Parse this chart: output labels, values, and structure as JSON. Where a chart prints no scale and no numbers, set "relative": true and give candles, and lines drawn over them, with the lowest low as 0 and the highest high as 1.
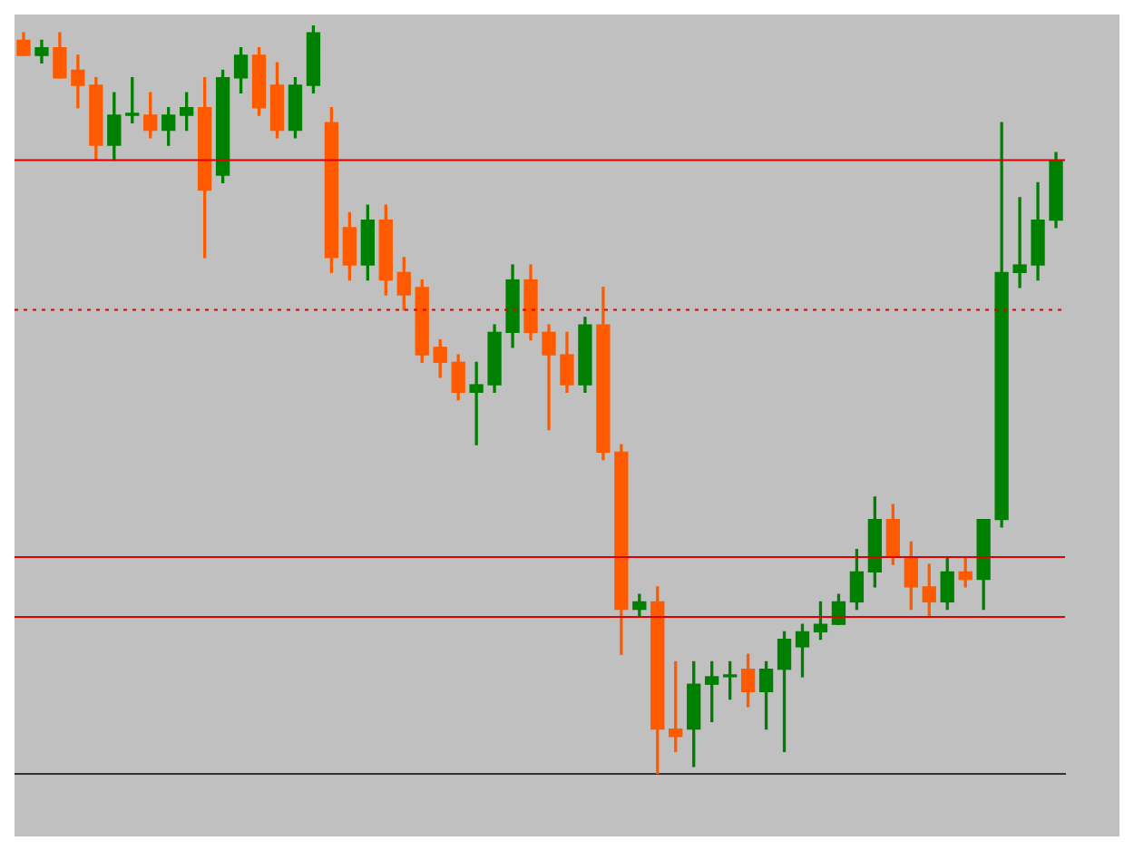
{
  "chart_data": {
    "type": "candlestick",
    "relative": true,
    "grid": false,
    "legend": false,
    "categories": [
      null,
      null,
      null,
      null,
      null,
      null,
      null,
      null,
      null,
      null,
      null,
      null,
      null,
      null,
      null,
      null,
      null,
      null,
      null,
      null,
      null,
      null,
      null,
      null,
      null,
      null,
      null,
      null,
      null,
      null,
      null,
      null,
      null,
      null,
      null,
      null,
      null,
      null,
      null,
      null,
      null,
      null,
      null,
      null,
      null,
      null,
      null,
      null,
      null,
      null,
      null,
      null,
      null,
      null,
      null,
      null,
      null,
      null
    ],
    "ohlc": [
      [
        0.98,
        0.99,
        0.96,
        0.96
      ],
      [
        0.96,
        0.98,
        0.95,
        0.97
      ],
      [
        0.97,
        0.99,
        0.93,
        0.93
      ],
      [
        0.94,
        0.96,
        0.89,
        0.92
      ],
      [
        0.92,
        0.93,
        0.82,
        0.84
      ],
      [
        0.84,
        0.91,
        0.82,
        0.88
      ],
      [
        0.88,
        0.93,
        0.87,
        0.88
      ],
      [
        0.88,
        0.91,
        0.85,
        0.86
      ],
      [
        0.86,
        0.89,
        0.84,
        0.88
      ],
      [
        0.88,
        0.91,
        0.86,
        0.89
      ],
      [
        0.89,
        0.93,
        0.69,
        0.78
      ],
      [
        0.8,
        0.94,
        0.79,
        0.93
      ],
      [
        0.93,
        0.97,
        0.91,
        0.96
      ],
      [
        0.96,
        0.97,
        0.88,
        0.89
      ],
      [
        0.92,
        0.95,
        0.85,
        0.86
      ],
      [
        0.86,
        0.93,
        0.85,
        0.92
      ],
      [
        0.92,
        1,
        0.91,
        0.99
      ],
      [
        0.87,
        0.89,
        0.67,
        0.69
      ],
      [
        0.73,
        0.75,
        0.66,
        0.68
      ],
      [
        0.68,
        0.76,
        0.66,
        0.74
      ],
      [
        0.74,
        0.76,
        0.64,
        0.66
      ],
      [
        0.67,
        0.69,
        0.62,
        0.64
      ],
      [
        0.65,
        0.66,
        0.55,
        0.56
      ],
      [
        0.57,
        0.58,
        0.53,
        0.55
      ],
      [
        0.55,
        0.56,
        0.5,
        0.51
      ],
      [
        0.51,
        0.55,
        0.44,
        0.52
      ],
      [
        0.52,
        0.6,
        0.51,
        0.59
      ],
      [
        0.59,
        0.68,
        0.57,
        0.66
      ],
      [
        0.66,
        0.68,
        0.58,
        0.59
      ],
      [
        0.59,
        0.6,
        0.46,
        0.56
      ],
      [
        0.56,
        0.59,
        0.51,
        0.52
      ],
      [
        0.52,
        0.61,
        0.51,
        0.6
      ],
      [
        0.6,
        0.65,
        0.42,
        0.43
      ],
      [
        0.43,
        0.44,
        0.16,
        0.22
      ],
      [
        0.22,
        0.24,
        0.21,
        0.23
      ],
      [
        0.23,
        0.25,
        0,
        0.06
      ],
      [
        0.06,
        0.15,
        0.03,
        0.05
      ],
      [
        0.06,
        0.15,
        0.01,
        0.12
      ],
      [
        0.12,
        0.15,
        0.07,
        0.13
      ],
      [
        0.13,
        0.15,
        0.1,
        0.13
      ],
      [
        0.14,
        0.16,
        0.09,
        0.11
      ],
      [
        0.11,
        0.15,
        0.06,
        0.14
      ],
      [
        0.14,
        0.19,
        0.03,
        0.18
      ],
      [
        0.17,
        0.2,
        0.13,
        0.19
      ],
      [
        0.19,
        0.23,
        0.18,
        0.2
      ],
      [
        0.2,
        0.24,
        0.2,
        0.23
      ],
      [
        0.23,
        0.3,
        0.22,
        0.27
      ],
      [
        0.27,
        0.37,
        0.25,
        0.34
      ],
      [
        0.34,
        0.36,
        0.28,
        0.29
      ],
      [
        0.29,
        0.31,
        0.22,
        0.25
      ],
      [
        0.25,
        0.28,
        0.21,
        0.23
      ],
      [
        0.23,
        0.29,
        0.22,
        0.27
      ],
      [
        0.27,
        0.29,
        0.25,
        0.26
      ],
      [
        0.26,
        0.34,
        0.22,
        0.34
      ],
      [
        0.34,
        0.87,
        0.33,
        0.67
      ],
      [
        0.67,
        0.77,
        0.65,
        0.68
      ],
      [
        0.68,
        0.79,
        0.66,
        0.74
      ],
      [
        0.74,
        0.83,
        0.73,
        0.82
      ]
    ],
    "colors": [
      "#ff5a00",
      "#008000",
      "#ff5a00",
      "#ff5a00",
      "#ff5a00",
      "#008000",
      "#008000",
      "#ff5a00",
      "#008000",
      "#008000",
      "#ff5a00",
      "#008000",
      "#008000",
      "#ff5a00",
      "#ff5a00",
      "#008000",
      "#008000",
      "#ff5a00",
      "#ff5a00",
      "#008000",
      "#ff5a00",
      "#ff5a00",
      "#ff5a00",
      "#ff5a00",
      "#ff5a00",
      "#008000",
      "#008000",
      "#008000",
      "#ff5a00",
      "#ff5a00",
      "#ff5a00",
      "#008000",
      "#ff5a00",
      "#ff5a00",
      "#008000",
      "#ff5a00",
      "#ff5a00",
      "#008000",
      "#008000",
      "#008000",
      "#ff5a00",
      "#008000",
      "#008000",
      "#008000",
      "#008000",
      "#008000",
      "#008000",
      "#008000",
      "#ff5a00",
      "#ff5a00",
      "#ff5a00",
      "#008000",
      "#ff5a00",
      "#008000",
      "#008000",
      "#008000",
      "#008000",
      "#008000"
    ],
    "ref_lines": [
      {
        "axis": "y",
        "value": 0.82,
        "color": "#e00000"
      },
      {
        "axis": "y",
        "value": 0.62,
        "color": "#e00000",
        "line_style": "dotted"
      },
      {
        "axis": "y",
        "value": 0.29,
        "color": "#e00000"
      },
      {
        "axis": "y",
        "value": 0.21,
        "color": "#e00000"
      }
    ]
  }
}
